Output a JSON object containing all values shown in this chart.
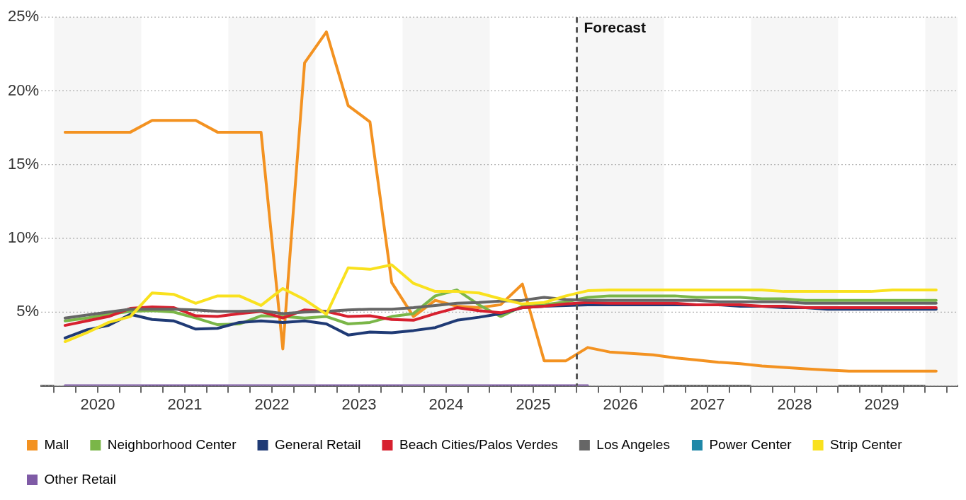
{
  "chart_data": {
    "type": "line",
    "x": [
      2020.125,
      2020.375,
      2020.625,
      2020.875,
      2021.125,
      2021.375,
      2021.625,
      2021.875,
      2022.125,
      2022.375,
      2022.625,
      2022.875,
      2023.125,
      2023.375,
      2023.625,
      2023.875,
      2024.125,
      2024.375,
      2024.625,
      2024.875,
      2025.125,
      2025.375,
      2025.625,
      2025.875,
      2026.125,
      2026.375,
      2026.625,
      2026.875,
      2027.125,
      2027.375,
      2027.625,
      2027.875,
      2028.125,
      2028.375,
      2028.625,
      2028.875,
      2029.125,
      2029.375,
      2029.625,
      2029.875,
      2030.125
    ],
    "series": [
      {
        "name": "Mall",
        "color": "#f39221",
        "values": [
          17.2,
          17.2,
          17.2,
          17.2,
          18.0,
          18.0,
          18.0,
          17.2,
          17.2,
          17.2,
          2.5,
          21.9,
          24.0,
          19.0,
          17.9,
          7.0,
          4.7,
          5.8,
          5.4,
          5.3,
          5.5,
          6.9,
          1.7,
          1.7,
          2.6,
          2.3,
          2.2,
          2.1,
          1.9,
          1.75,
          1.6,
          1.5,
          1.35,
          1.25,
          1.15,
          1.07,
          1.0,
          1.0,
          1.0,
          1.0,
          1.0
        ]
      },
      {
        "name": "Neighborhood Center",
        "color": "#7ab648",
        "values": [
          4.4,
          4.6,
          4.85,
          5.05,
          5.1,
          5.0,
          4.6,
          4.15,
          4.2,
          4.75,
          4.7,
          4.6,
          4.7,
          4.2,
          4.3,
          4.7,
          4.9,
          6.1,
          6.5,
          5.5,
          4.7,
          5.4,
          5.5,
          5.7,
          6.0,
          6.1,
          6.1,
          6.1,
          6.1,
          6.0,
          6.0,
          6.0,
          5.9,
          5.9,
          5.8,
          5.8,
          5.8,
          5.8,
          5.8,
          5.8,
          5.8
        ]
      },
      {
        "name": "General Retail",
        "color": "#1f3a75",
        "values": [
          3.25,
          3.8,
          4.1,
          4.85,
          4.5,
          4.4,
          3.85,
          3.9,
          4.3,
          4.4,
          4.3,
          4.4,
          4.2,
          3.45,
          3.65,
          3.6,
          3.75,
          3.95,
          4.45,
          4.65,
          4.9,
          5.3,
          5.4,
          5.45,
          5.5,
          5.5,
          5.5,
          5.5,
          5.5,
          5.5,
          5.5,
          5.4,
          5.4,
          5.3,
          5.3,
          5.2,
          5.2,
          5.2,
          5.2,
          5.2,
          5.2
        ]
      },
      {
        "name": "Beach Cities/Palos Verdes",
        "color": "#d7202f",
        "values": [
          4.1,
          4.4,
          4.7,
          5.25,
          5.35,
          5.3,
          4.75,
          4.7,
          4.9,
          5.05,
          4.6,
          5.15,
          5.05,
          4.7,
          4.75,
          4.5,
          4.45,
          4.9,
          5.3,
          5.1,
          4.95,
          5.3,
          5.4,
          5.55,
          5.65,
          5.6,
          5.6,
          5.6,
          5.6,
          5.5,
          5.5,
          5.5,
          5.4,
          5.4,
          5.3,
          5.3,
          5.3,
          5.3,
          5.3,
          5.3,
          5.3
        ]
      },
      {
        "name": "Los Angeles",
        "color": "#666666",
        "values": [
          4.6,
          4.8,
          5.0,
          5.2,
          5.2,
          5.2,
          5.15,
          5.05,
          5.05,
          5.1,
          4.9,
          5.0,
          5.05,
          5.15,
          5.2,
          5.2,
          5.3,
          5.45,
          5.6,
          5.65,
          5.75,
          5.8,
          6.0,
          5.85,
          5.8,
          5.8,
          5.8,
          5.8,
          5.8,
          5.8,
          5.7,
          5.7,
          5.7,
          5.7,
          5.6,
          5.6,
          5.6,
          5.6,
          5.6,
          5.6,
          5.6
        ]
      },
      {
        "name": "Power Center",
        "color": "#1f88a8",
        "values": [
          null,
          null,
          null,
          null,
          null,
          null,
          null,
          null,
          null,
          null,
          null,
          null,
          null,
          null,
          null,
          null,
          null,
          null,
          null,
          null,
          null,
          null,
          null,
          null,
          null,
          null,
          null,
          null,
          null,
          null,
          null,
          null,
          null,
          null,
          null,
          null,
          null,
          null,
          null,
          null,
          null
        ]
      },
      {
        "name": "Strip Center",
        "color": "#f9e11e",
        "values": [
          3.0,
          3.6,
          4.3,
          4.7,
          6.3,
          6.2,
          5.6,
          6.1,
          6.1,
          5.45,
          6.6,
          5.85,
          4.85,
          8.0,
          7.9,
          8.2,
          6.95,
          6.4,
          6.4,
          6.3,
          5.9,
          5.55,
          5.65,
          6.1,
          6.45,
          6.5,
          6.5,
          6.5,
          6.5,
          6.5,
          6.5,
          6.5,
          6.5,
          6.4,
          6.4,
          6.4,
          6.4,
          6.4,
          6.5,
          6.5,
          6.5
        ]
      },
      {
        "name": "Other Retail",
        "color": "#7f5ba6",
        "values": [
          0,
          0,
          0,
          0,
          0,
          0,
          0,
          0,
          0,
          0,
          0,
          0,
          0,
          0,
          0,
          0,
          0,
          0,
          0,
          0,
          0,
          0,
          0,
          0,
          0,
          null,
          null,
          null,
          null,
          null,
          null,
          null,
          null,
          null,
          null,
          null,
          null,
          null,
          null,
          null,
          null
        ]
      }
    ],
    "xlim": [
      2019.85,
      2030.37
    ],
    "xticks": [
      {
        "value": 2020,
        "label": null
      },
      {
        "value": 2020.25,
        "label": null
      },
      {
        "value": 2020.5,
        "label": "2020"
      },
      {
        "value": 2020.75,
        "label": null
      },
      {
        "value": 2021,
        "label": null
      },
      {
        "value": 2021.25,
        "label": null
      },
      {
        "value": 2021.5,
        "label": "2021"
      },
      {
        "value": 2021.75,
        "label": null
      },
      {
        "value": 2022,
        "label": null
      },
      {
        "value": 2022.25,
        "label": null
      },
      {
        "value": 2022.5,
        "label": "2022"
      },
      {
        "value": 2022.75,
        "label": null
      },
      {
        "value": 2023,
        "label": null
      },
      {
        "value": 2023.25,
        "label": null
      },
      {
        "value": 2023.5,
        "label": "2023"
      },
      {
        "value": 2023.75,
        "label": null
      },
      {
        "value": 2024,
        "label": null
      },
      {
        "value": 2024.25,
        "label": null
      },
      {
        "value": 2024.5,
        "label": "2024"
      },
      {
        "value": 2024.75,
        "label": null
      },
      {
        "value": 2025,
        "label": null
      },
      {
        "value": 2025.25,
        "label": null
      },
      {
        "value": 2025.5,
        "label": "2025"
      },
      {
        "value": 2025.75,
        "label": null
      },
      {
        "value": 2026,
        "label": null
      },
      {
        "value": 2026.25,
        "label": null
      },
      {
        "value": 2026.5,
        "label": "2026"
      },
      {
        "value": 2026.75,
        "label": null
      },
      {
        "value": 2027,
        "label": null
      },
      {
        "value": 2027.25,
        "label": null
      },
      {
        "value": 2027.5,
        "label": "2027"
      },
      {
        "value": 2027.75,
        "label": null
      },
      {
        "value": 2028,
        "label": null
      },
      {
        "value": 2028.25,
        "label": null
      },
      {
        "value": 2028.5,
        "label": "2028"
      },
      {
        "value": 2028.75,
        "label": null
      },
      {
        "value": 2029,
        "label": null
      },
      {
        "value": 2029.25,
        "label": null
      },
      {
        "value": 2029.5,
        "label": "2029"
      },
      {
        "value": 2029.75,
        "label": null
      },
      {
        "value": 2030,
        "label": null
      },
      {
        "value": 2030.25,
        "label": null
      }
    ],
    "ylim": [
      0,
      25
    ],
    "yticks": [
      {
        "value": 0,
        "label": null
      },
      {
        "value": 5,
        "label": "5%"
      },
      {
        "value": 10,
        "label": "10%"
      },
      {
        "value": 15,
        "label": "15%"
      },
      {
        "value": 20,
        "label": "20%"
      },
      {
        "value": 25,
        "label": "25%"
      }
    ],
    "grid": "y",
    "legend": "bottom",
    "ref_lines": [
      {
        "axis": "x",
        "value": 2026,
        "label": "Forecast",
        "color": "#555555",
        "line_style": "dashed"
      }
    ],
    "bands": [
      {
        "axis": "x",
        "from": 2020,
        "to": 2021,
        "color": "#f6f6f6"
      },
      {
        "axis": "x",
        "from": 2022,
        "to": 2023,
        "color": "#f6f6f6"
      },
      {
        "axis": "x",
        "from": 2024,
        "to": 2025,
        "color": "#f6f6f6"
      },
      {
        "axis": "x",
        "from": 2026,
        "to": 2027,
        "color": "#f6f6f6"
      },
      {
        "axis": "x",
        "from": 2028,
        "to": 2029,
        "color": "#f6f6f6"
      },
      {
        "axis": "x",
        "from": 2030,
        "to": 2030.37,
        "color": "#f6f6f6"
      }
    ]
  }
}
